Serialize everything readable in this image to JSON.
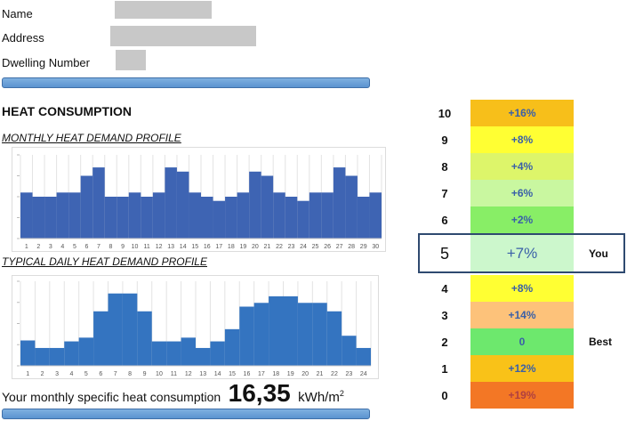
{
  "info": {
    "name_label": "Name",
    "address_label": "Address",
    "dwelling_label": "Dwelling Number"
  },
  "section_title": "HEAT CONSUMPTION",
  "monthly_title": "MONTHLY HEAT DEMAND PROFILE",
  "daily_title": "TYPICAL DAILY HEAT DEMAND PROFILE",
  "consumption": {
    "label": "Your monthly specific heat consumption",
    "value": "16,35",
    "unit": "kWh/m",
    "unit_sup": "2"
  },
  "ranking": {
    "rows": [
      {
        "rank": "10",
        "value": "+16%",
        "color": "#f7bf1a"
      },
      {
        "rank": "9",
        "value": "+8%",
        "color": "#ffff33"
      },
      {
        "rank": "8",
        "value": "+4%",
        "color": "#ddf56a"
      },
      {
        "rank": "7",
        "value": "+6%",
        "color": "#c9f7a0"
      },
      {
        "rank": "6",
        "value": "+2%",
        "color": "#88ee66"
      },
      {
        "rank": "5",
        "value": "+7%",
        "color": "#ccf7cc"
      },
      {
        "rank": "4",
        "value": "+8%",
        "color": "#ffff33"
      },
      {
        "rank": "3",
        "value": "+14%",
        "color": "#fdc27a"
      },
      {
        "rank": "2",
        "value": "0",
        "color": "#6de86d"
      },
      {
        "rank": "1",
        "value": "+12%",
        "color": "#f9c218"
      },
      {
        "rank": "0",
        "value": "+19%",
        "color": "#f37725"
      }
    ],
    "you_label": "You",
    "best_label": "Best"
  },
  "chart_data": [
    {
      "type": "bar",
      "categories": [
        "1",
        "2",
        "3",
        "4",
        "5",
        "6",
        "7",
        "8",
        "9",
        "10",
        "11",
        "12",
        "13",
        "14",
        "15",
        "16",
        "17",
        "18",
        "19",
        "20",
        "21",
        "22",
        "23",
        "24",
        "25",
        "26",
        "27",
        "28",
        "29",
        "30"
      ],
      "values": [
        11,
        10,
        10,
        11,
        11,
        15,
        17,
        10,
        10,
        11,
        10,
        11,
        17,
        16,
        11,
        10,
        9,
        10,
        11,
        16,
        15,
        11,
        10,
        9,
        11,
        11,
        17,
        15,
        10,
        11
      ],
      "ylim": [
        0,
        20
      ],
      "bar_color": "#3e64b3"
    },
    {
      "type": "bar",
      "categories": [
        "1",
        "2",
        "3",
        "4",
        "5",
        "6",
        "7",
        "8",
        "9",
        "10",
        "11",
        "12",
        "13",
        "14",
        "15",
        "16",
        "17",
        "18",
        "19",
        "20",
        "21",
        "22",
        "23",
        "24"
      ],
      "values": [
        2.7,
        1.9,
        1.9,
        2.6,
        3,
        5.8,
        7.7,
        7.7,
        5.8,
        2.6,
        2.6,
        3,
        1.9,
        2.6,
        3.9,
        6.3,
        6.7,
        7.4,
        7.4,
        6.7,
        6.7,
        5.8,
        3.2,
        1.9
      ],
      "ylim": [
        0,
        9
      ],
      "bar_color": "#3474c0"
    }
  ]
}
